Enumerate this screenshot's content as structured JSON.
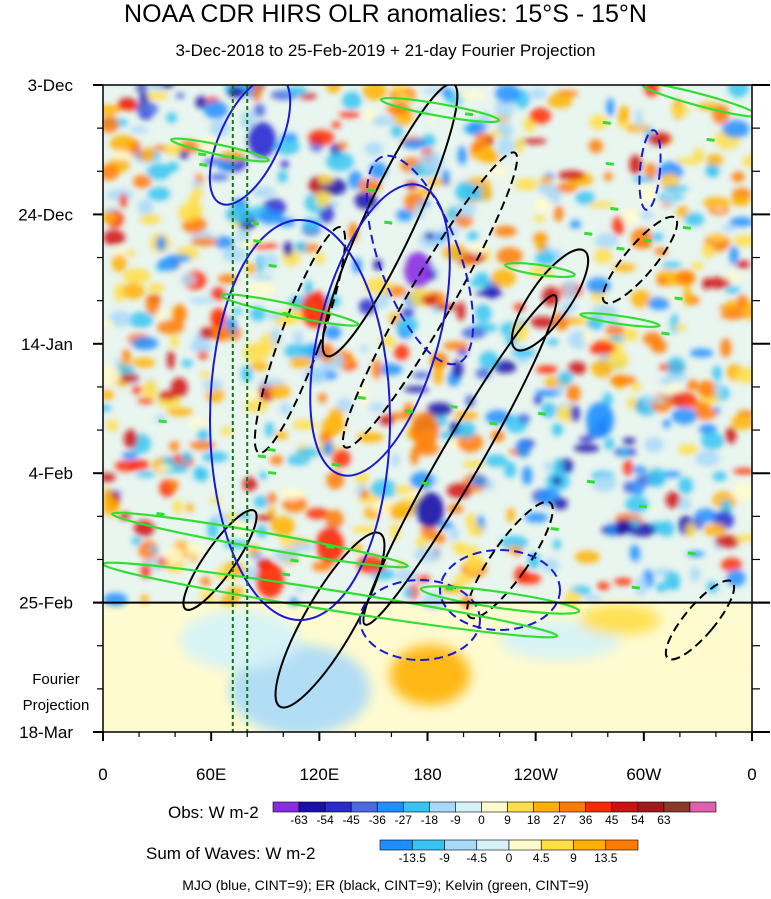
{
  "header": {
    "title": "NOAA CDR HIRS OLR anomalies: 15°S - 15°N",
    "subtitle": "3-Dec-2018 to 25-Feb-2019 + 21-day Fourier Projection"
  },
  "legend": {
    "obs_label": "Obs: W m-2",
    "waves_label": "Sum of Waves: W m-2",
    "obs_colors": [
      "#8a2be2",
      "#1a0fa8",
      "#2a2ad2",
      "#4a6ae0",
      "#1f8fff",
      "#37c4f2",
      "#a9d9f8",
      "#d4f2f8",
      "#fffbcc",
      "#ffdd44",
      "#ffb000",
      "#ff7a00",
      "#ff2800",
      "#d01010",
      "#a01a1a",
      "#8b3a2a",
      "#e060b0"
    ],
    "obs_ticks": [
      "-63",
      "-54",
      "-45",
      "-36",
      "-27",
      "-18",
      "-9",
      "0",
      "9",
      "18",
      "27",
      "36",
      "45",
      "54",
      "63"
    ],
    "waves_colors": [
      "#1f8fff",
      "#37c4f2",
      "#a9d9f8",
      "#d4f2f8",
      "#fffbcc",
      "#ffdd44",
      "#ffb000",
      "#ff7a00"
    ],
    "waves_ticks": [
      "-13.5",
      "-9",
      "-4.5",
      "0",
      "4.5",
      "9",
      "13.5"
    ]
  },
  "footer": {
    "text": "MJO (blue, CINT=9); ER (black, CINT=9); Kelvin (green, CINT=9)"
  },
  "chart_data": {
    "type": "heatmap",
    "title": "NOAA CDR HIRS OLR anomalies: 15°S - 15°N",
    "subtitle": "3-Dec-2018 to 25-Feb-2019 + 21-day Fourier Projection",
    "x_ticks": [
      "0",
      "60E",
      "120E",
      "180",
      "120W",
      "60W",
      "0"
    ],
    "x_range_deg": [
      0,
      360
    ],
    "y_ticks": [
      "3-Dec",
      "24-Dec",
      "14-Jan",
      "4-Feb",
      "25-Feb",
      "18-Mar"
    ],
    "y_range_days": [
      0,
      105
    ],
    "observation_end": "25-Feb",
    "projection_label": [
      "Fourier",
      "Projection"
    ],
    "vertical_markers_deg": [
      72,
      80
    ],
    "contours": [
      {
        "wave": "MJO",
        "color": "blue",
        "cint": 9
      },
      {
        "wave": "ER",
        "color": "black",
        "cint": 9
      },
      {
        "wave": "Kelvin",
        "color": "green",
        "cint": 9
      }
    ]
  }
}
